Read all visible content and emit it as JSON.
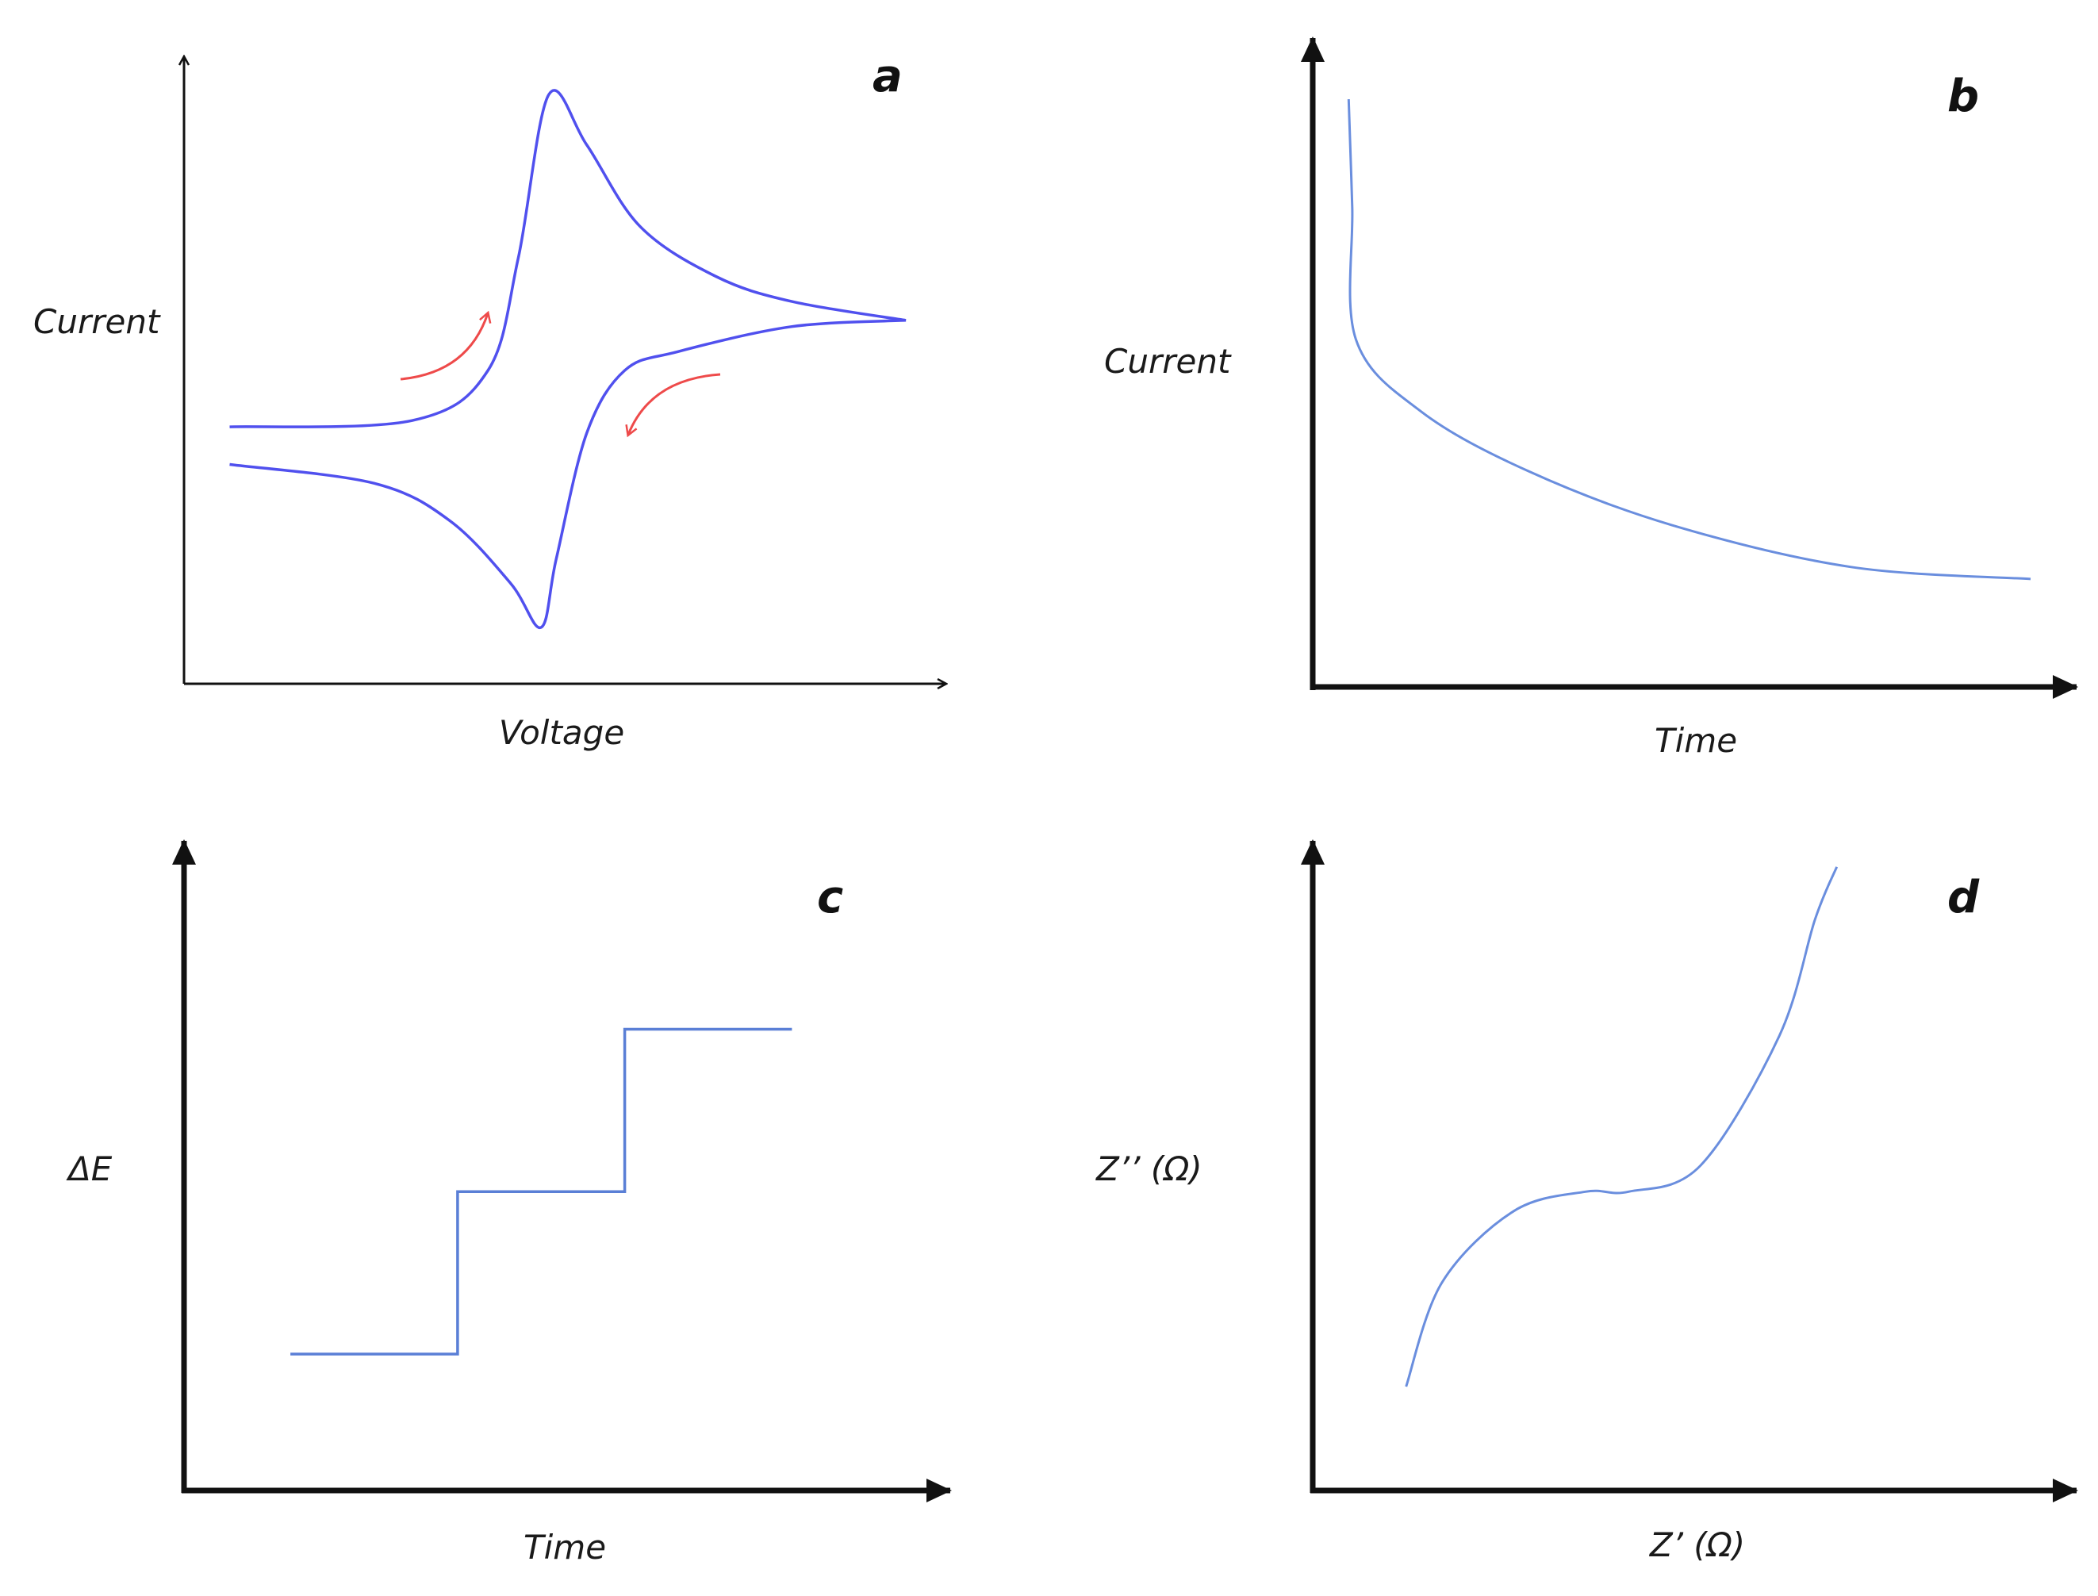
{
  "colors": {
    "curve_strong": "#5050ee",
    "curve_light": "#6a8ede",
    "scan_arrow": "#ee4a4a",
    "axis": "#111111"
  },
  "panels": [
    {
      "letter": "a",
      "xlabel": "Voltage",
      "ylabel": "Current"
    },
    {
      "letter": "b",
      "xlabel": "Time",
      "ylabel": "Current"
    },
    {
      "letter": "c",
      "xlabel": "Time",
      "ylabel": "ΔE"
    },
    {
      "letter": "d",
      "xlabel": "Z’ (Ω)",
      "ylabel": "Z’’ (Ω)"
    }
  ],
  "chart_data": [
    {
      "panel": "a",
      "type": "line",
      "xlabel": "Voltage",
      "ylabel": "Current",
      "grid": false,
      "xlim": [
        0,
        10
      ],
      "ylim": [
        0,
        10
      ],
      "series": [
        {
          "x": [
            0.6,
            3.0,
            4.0,
            4.4,
            4.8,
            5.3,
            6.0,
            7.0,
            8.0,
            9.5
          ],
          "y": [
            4.1,
            4.2,
            5.0,
            6.8,
            9.4,
            8.6,
            7.3,
            6.5,
            6.1,
            5.8
          ]
        },
        {
          "x": [
            9.5,
            8.0,
            6.5,
            5.8,
            5.3,
            4.9,
            4.7,
            4.3,
            3.5,
            2.5,
            0.6
          ],
          "y": [
            5.8,
            5.7,
            5.3,
            5.0,
            4.0,
            2.0,
            0.9,
            1.6,
            2.6,
            3.2,
            3.5
          ]
        }
      ]
    },
    {
      "panel": "b",
      "type": "line",
      "xlabel": "Time",
      "ylabel": "Current",
      "grid": false,
      "xlim": [
        0,
        10
      ],
      "ylim": [
        0,
        10
      ],
      "series": [
        {
          "x": [
            0.5,
            0.55,
            0.6,
            1.5,
            3.0,
            5.0,
            7.5,
            10.0
          ],
          "y": [
            9.8,
            8.0,
            5.8,
            4.6,
            3.6,
            2.7,
            2.0,
            1.8
          ]
        }
      ]
    },
    {
      "panel": "c",
      "type": "line",
      "xlabel": "Time",
      "ylabel": "ΔE",
      "grid": false,
      "xlim": [
        0,
        10
      ],
      "ylim": [
        0,
        10
      ],
      "series": [
        {
          "x": [
            1.4,
            3.6,
            3.6,
            5.8,
            5.8,
            8.0
          ],
          "y": [
            2.1,
            2.1,
            4.6,
            4.6,
            7.1,
            7.1
          ]
        }
      ]
    },
    {
      "panel": "d",
      "type": "line",
      "xlabel": "Z’ (Ω)",
      "ylabel": "Z’’ (Ω)",
      "grid": false,
      "xlim": [
        0,
        10
      ],
      "ylim": [
        0,
        10
      ],
      "series": [
        {
          "x": [
            1.3,
            1.8,
            2.8,
            3.8,
            4.4,
            5.4,
            6.5,
            7.0,
            7.3
          ],
          "y": [
            1.6,
            3.2,
            4.3,
            4.6,
            4.6,
            5.0,
            7.0,
            8.8,
            9.6
          ]
        }
      ]
    }
  ]
}
